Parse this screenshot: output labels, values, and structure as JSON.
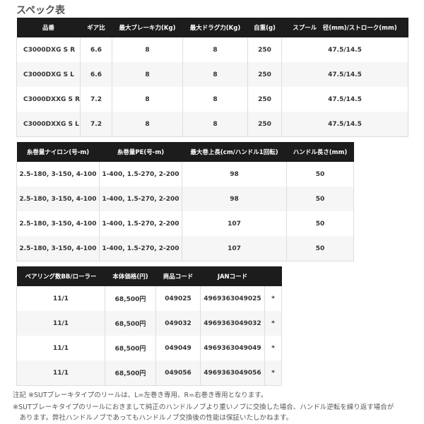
{
  "title": "スペック表",
  "table1": {
    "headers": [
      "品番",
      "ギア比",
      "最大ブレーキ力(Kg)",
      "最大ドラグ力(Kg)",
      "自重(g)",
      "スプール　径(mm)/ストローク(mm)"
    ],
    "rows": [
      [
        "C3000DXG S R",
        "6.6",
        "8",
        "8",
        "250",
        "47.5/14.5"
      ],
      [
        "C3000DXG S L",
        "6.6",
        "8",
        "8",
        "250",
        "47.5/14.5"
      ],
      [
        "C3000DXXG S R",
        "7.2",
        "8",
        "8",
        "250",
        "47.5/14.5"
      ],
      [
        "C3000DXXG S L",
        "7.2",
        "8",
        "8",
        "250",
        "47.5/14.5"
      ]
    ]
  },
  "table2": {
    "headers": [
      "糸巻量ナイロン(号-m)",
      "糸巻量PE(号-m)",
      "最大巻上長(cm/ハンドル1回転)",
      "ハンドル長さ(mm)"
    ],
    "rows": [
      [
        "2.5-180, 3-150, 4-100",
        "1-400, 1.5-270, 2-200",
        "98",
        "50"
      ],
      [
        "2.5-180, 3-150, 4-100",
        "1-400, 1.5-270, 2-200",
        "98",
        "50"
      ],
      [
        "2.5-180, 3-150, 4-100",
        "1-400, 1.5-270, 2-200",
        "107",
        "50"
      ],
      [
        "2.5-180, 3-150, 4-100",
        "1-400, 1.5-270, 2-200",
        "107",
        "50"
      ]
    ]
  },
  "table3": {
    "headers": [
      "ベアリング数BB/ローラー",
      "本体価格(円)",
      "商品コード",
      "JANコード",
      ""
    ],
    "rows": [
      [
        "11/1",
        "68,500円",
        "049025",
        "4969363049025",
        "*"
      ],
      [
        "11/1",
        "68,500円",
        "049032",
        "4969363049032",
        "*"
      ],
      [
        "11/1",
        "68,500円",
        "049049",
        "4969363049049",
        "*"
      ],
      [
        "11/1",
        "68,500円",
        "049056",
        "4969363049056",
        "*"
      ]
    ]
  },
  "notes": [
    "注記 ※SUTブレーキタイプのリールは、L=左巻き専用、R=右巻き専用となります。",
    "※SUTブレーキタイプのリールにおきまして純正のハンドルノブより重いノブに交換した場合、ハンドル逆転を繰り返す場合が",
    "　あります。弊社ハンドルノブであってもハンドルノブ交換後の性能は保証いたしかねます。"
  ]
}
